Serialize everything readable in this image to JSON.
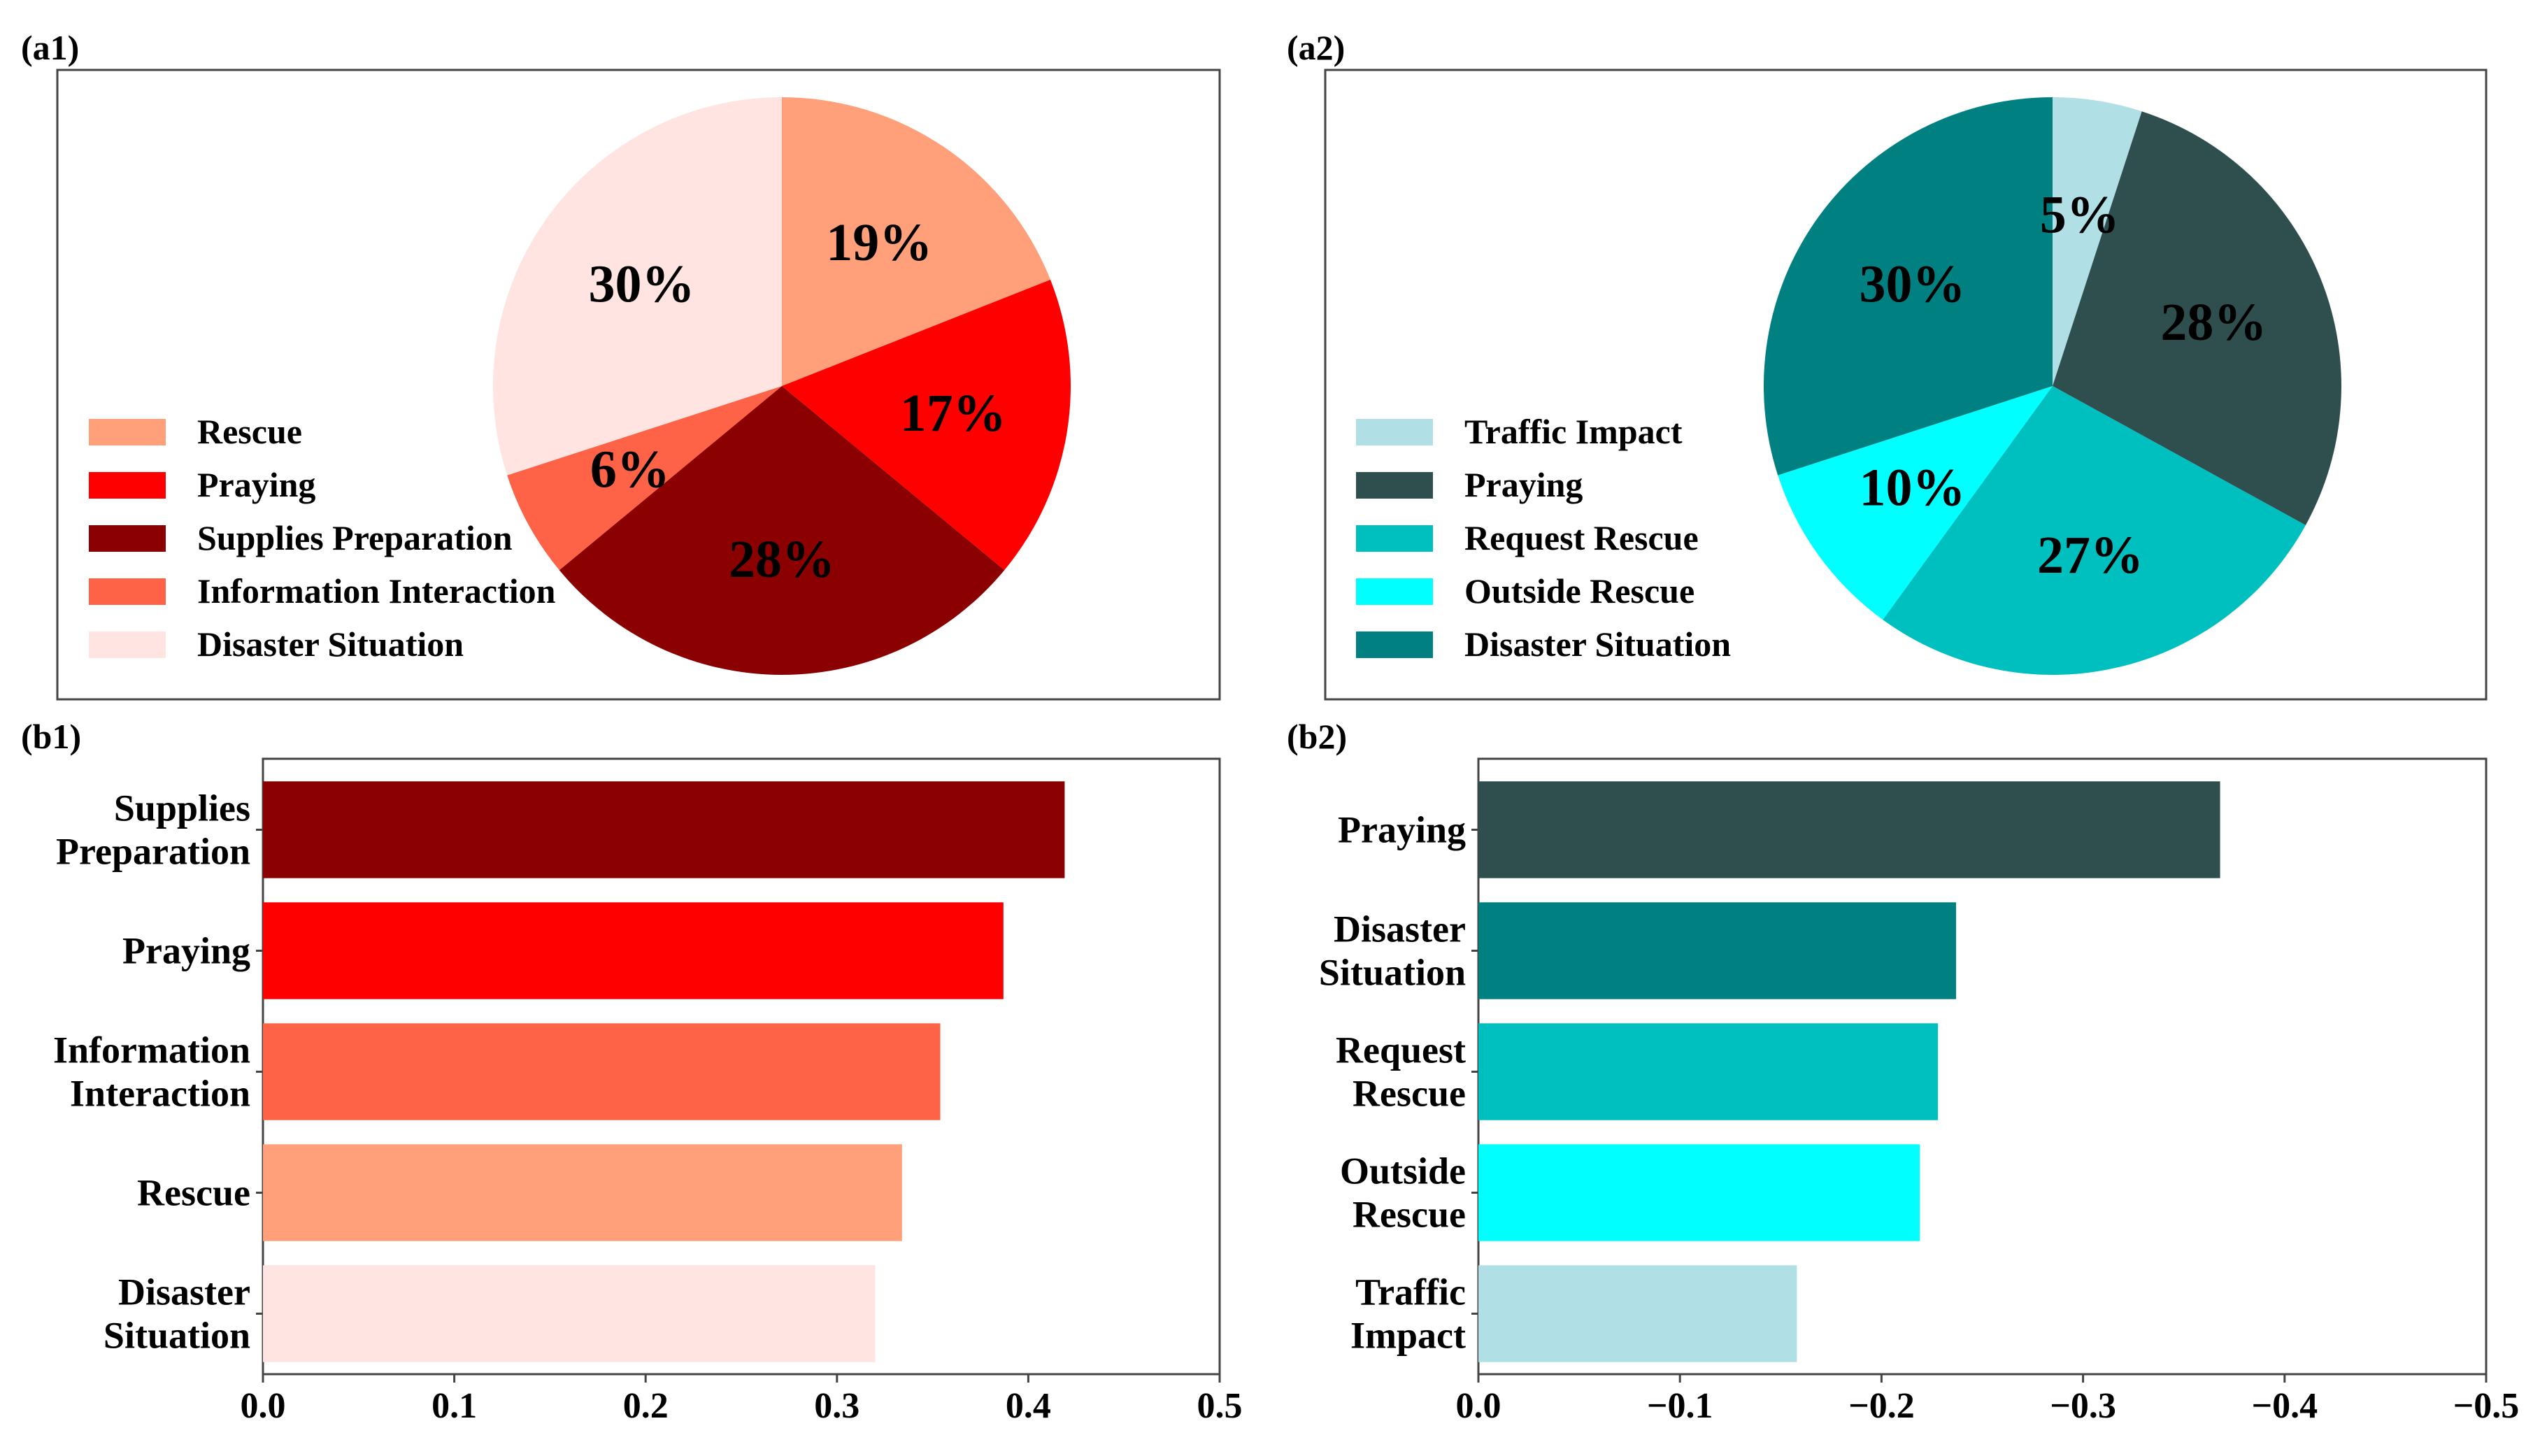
{
  "chart_data": [
    {
      "panel": "(a1)",
      "type": "pie",
      "legend_position": "lower-left",
      "slices": [
        {
          "label": "Rescue",
          "value": 19,
          "text": "19%",
          "color": "#FFA07A"
        },
        {
          "label": "Praying",
          "value": 17,
          "text": "17%",
          "color": "#FF0000"
        },
        {
          "label": "Supplies Preparation",
          "value": 28,
          "text": "28%",
          "color": "#8B0000"
        },
        {
          "label": "Information Interaction",
          "value": 6,
          "text": "6%",
          "color": "#FF6347"
        },
        {
          "label": "Disaster Situation",
          "value": 30,
          "text": "30%",
          "color": "#FFE4E1"
        }
      ]
    },
    {
      "panel": "(a2)",
      "type": "pie",
      "legend_position": "lower-left",
      "slices": [
        {
          "label": "Traffic Impact",
          "value": 5,
          "text": "5%",
          "color": "#B0E0E6"
        },
        {
          "label": "Praying",
          "value": 28,
          "text": "28%",
          "color": "#2F4F4F"
        },
        {
          "label": "Request Rescue",
          "value": 27,
          "text": "27%",
          "color": "#00BFBF"
        },
        {
          "label": "Outside Rescue",
          "value": 10,
          "text": "10%",
          "color": "#00FFFF"
        },
        {
          "label": "Disaster Situation",
          "value": 30,
          "text": "30%",
          "color": "#008080"
        }
      ]
    },
    {
      "panel": "(b1)",
      "type": "bar",
      "orientation": "horizontal",
      "xlim": [
        0,
        0.5
      ],
      "xticks": [
        "0.0",
        "0.1",
        "0.2",
        "0.3",
        "0.4",
        "0.5"
      ],
      "bars": [
        {
          "label": [
            "Supplies",
            "Preparation"
          ],
          "value": 0.419,
          "color": "#8B0000"
        },
        {
          "label": [
            "Praying"
          ],
          "value": 0.387,
          "color": "#FF0000"
        },
        {
          "label": [
            "Information",
            "Interaction"
          ],
          "value": 0.354,
          "color": "#FF6347"
        },
        {
          "label": [
            "Rescue"
          ],
          "value": 0.334,
          "color": "#FFA07A"
        },
        {
          "label": [
            "Disaster",
            "Situation"
          ],
          "value": 0.32,
          "color": "#FFE4E1"
        }
      ]
    },
    {
      "panel": "(b2)",
      "type": "bar",
      "orientation": "horizontal",
      "xlim": [
        0,
        -0.5
      ],
      "xticks": [
        "0.0",
        "−0.1",
        "−0.2",
        "−0.3",
        "−0.4",
        "−0.5"
      ],
      "bars": [
        {
          "label": [
            "Praying"
          ],
          "value": -0.368,
          "color": "#2F4F4F"
        },
        {
          "label": [
            "Disaster",
            "Situation"
          ],
          "value": -0.237,
          "color": "#008080"
        },
        {
          "label": [
            "Request",
            "Rescue"
          ],
          "value": -0.228,
          "color": "#00BFBF"
        },
        {
          "label": [
            "Outside",
            "Rescue"
          ],
          "value": -0.219,
          "color": "#00FFFF"
        },
        {
          "label": [
            "Traffic",
            "Impact"
          ],
          "value": -0.158,
          "color": "#B0E0E6"
        }
      ]
    }
  ]
}
